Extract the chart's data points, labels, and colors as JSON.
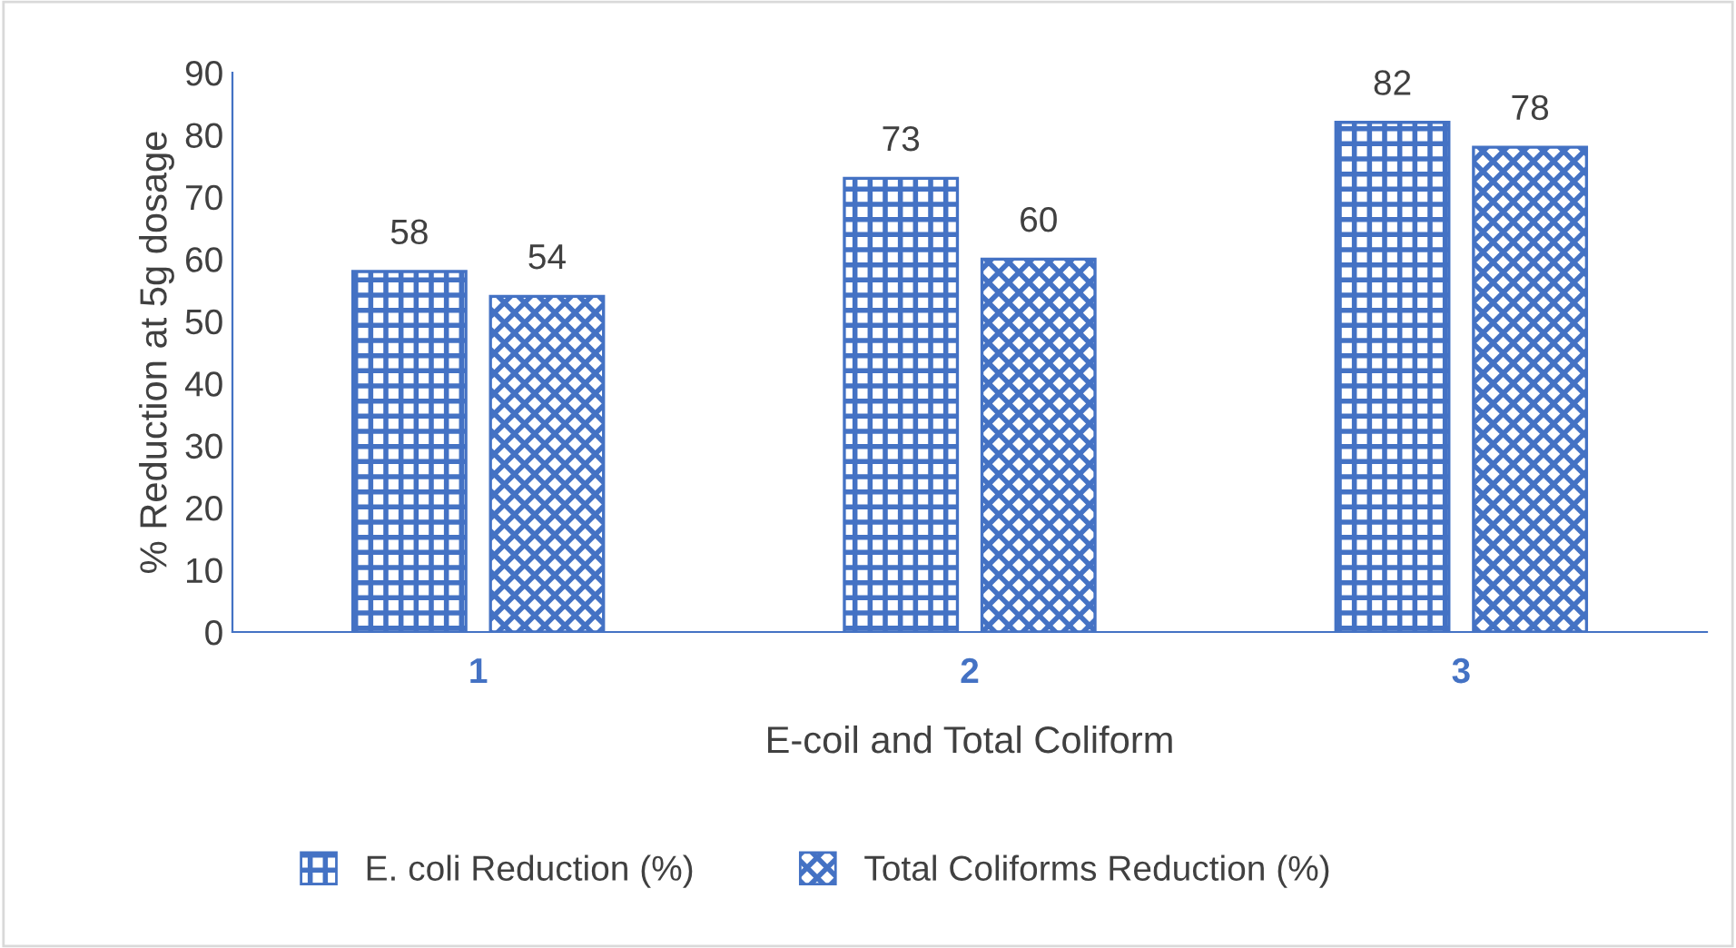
{
  "chart_data": {
    "type": "bar",
    "xlabel": "E-coil and Total Coliform",
    "ylabel": "% Reduction at 5g dosage",
    "categories": [
      "1",
      "2",
      "3"
    ],
    "series": [
      {
        "name": "E. coli Reduction (%)",
        "color": "#4472c4",
        "values": [
          58,
          73,
          82
        ]
      },
      {
        "name": "Total Coliforms Reduction (%)",
        "color": "#4472c4",
        "values": [
          54,
          60,
          78
        ]
      }
    ],
    "ylim": [
      0,
      90
    ],
    "yticks": [
      0,
      10,
      20,
      30,
      40,
      50,
      60,
      70,
      80,
      90
    ],
    "grid": false,
    "legend": "bottom",
    "data_labels": true
  }
}
